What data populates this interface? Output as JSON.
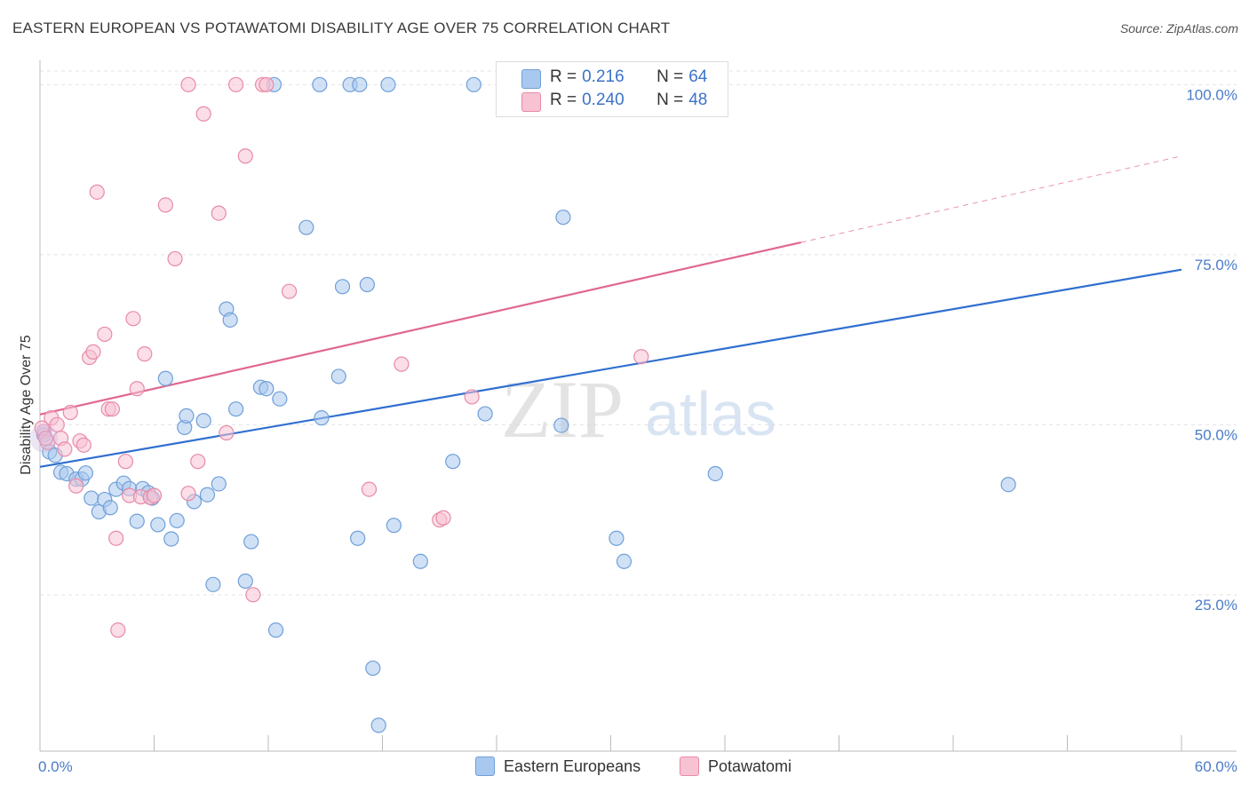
{
  "header": {
    "title": "EASTERN EUROPEAN VS POTAWATOMI DISABILITY AGE OVER 75 CORRELATION CHART",
    "source": "Source: ZipAtlas.com"
  },
  "legend_top": {
    "rows": [
      {
        "r_label": "R = ",
        "r_value": "0.216",
        "n_label": "N = ",
        "n_value": "64",
        "color": "#a9c8ef",
        "border": "#6f9fd8"
      },
      {
        "r_label": "R = ",
        "r_value": "0.240",
        "n_label": "N = ",
        "n_value": "48",
        "color": "#f7c3d3",
        "border": "#e88aa8"
      }
    ]
  },
  "legend_bottom": {
    "items": [
      {
        "label": "Eastern Europeans",
        "color": "#a9c8ef",
        "border": "#6f9fd8"
      },
      {
        "label": "Potawatomi",
        "color": "#f7c3d3",
        "border": "#e88aa8"
      }
    ]
  },
  "watermark": {
    "zip": "ZIP",
    "atlas": "atlas"
  },
  "chart_data": {
    "type": "scatter",
    "title": "EASTERN EUROPEAN VS POTAWATOMI DISABILITY AGE OVER 75 CORRELATION CHART",
    "ylabel": "Disability Age Over 75",
    "xlabel": "",
    "xlim": [
      0,
      60
    ],
    "ylim": [
      2,
      102
    ],
    "x_tick_labels": [
      "0.0%",
      "60.0%"
    ],
    "y_ticks": [
      25,
      50,
      75,
      100
    ],
    "y_tick_labels": [
      "25.0%",
      "50.0%",
      "75.0%",
      "100.0%"
    ],
    "grid": true,
    "legend_placement": "top-center",
    "series": [
      {
        "name": "Eastern Europeans",
        "color": "#6f9fd8",
        "fill": "#a9c8ef",
        "trend": {
          "x": [
            0,
            60
          ],
          "y": [
            43.8,
            72.8
          ],
          "color": "#2f6fd0"
        },
        "points": [
          [
            0.2,
            48.5
          ],
          [
            0.5,
            46
          ],
          [
            0.8,
            45.5
          ],
          [
            1.1,
            43
          ],
          [
            1.4,
            42.8
          ],
          [
            1.9,
            42
          ],
          [
            2.2,
            42
          ],
          [
            2.4,
            42.9
          ],
          [
            2.7,
            39.2
          ],
          [
            3.1,
            37.2
          ],
          [
            3.4,
            39
          ],
          [
            3.7,
            37.8
          ],
          [
            4.0,
            40.5
          ],
          [
            4.4,
            41.4
          ],
          [
            4.7,
            40.6
          ],
          [
            5.1,
            35.8
          ],
          [
            5.4,
            40.6
          ],
          [
            5.7,
            40
          ],
          [
            5.9,
            39.2
          ],
          [
            6.2,
            35.3
          ],
          [
            6.6,
            56.8
          ],
          [
            6.9,
            33.2
          ],
          [
            7.2,
            35.9
          ],
          [
            7.6,
            49.6
          ],
          [
            7.7,
            51.3
          ],
          [
            8.1,
            38.7
          ],
          [
            8.6,
            50.6
          ],
          [
            8.8,
            39.7
          ],
          [
            9.1,
            26.5
          ],
          [
            9.4,
            41.3
          ],
          [
            9.8,
            67
          ],
          [
            10.0,
            65.4
          ],
          [
            10.3,
            52.3
          ],
          [
            10.8,
            27
          ],
          [
            11.1,
            32.8
          ],
          [
            11.6,
            55.5
          ],
          [
            11.9,
            55.3
          ],
          [
            12.4,
            19.8
          ],
          [
            12.6,
            53.8
          ],
          [
            14.0,
            79
          ],
          [
            14.8,
            51
          ],
          [
            15.7,
            57.1
          ],
          [
            15.9,
            70.3
          ],
          [
            16.7,
            33.3
          ],
          [
            17.2,
            70.6
          ],
          [
            17.5,
            14.2
          ],
          [
            17.8,
            5.8
          ],
          [
            18.6,
            35.2
          ],
          [
            20.0,
            29.9
          ],
          [
            21.7,
            44.6
          ],
          [
            23.4,
            51.6
          ],
          [
            27.4,
            49.9
          ],
          [
            27.5,
            80.5
          ],
          [
            30.3,
            33.3
          ],
          [
            30.7,
            29.9
          ],
          [
            35.5,
            42.8
          ],
          [
            50.9,
            41.2
          ],
          [
            12.3,
            100
          ],
          [
            14.7,
            100
          ],
          [
            16.3,
            100
          ],
          [
            16.8,
            100
          ],
          [
            18.3,
            100
          ],
          [
            22.8,
            100
          ],
          [
            33.7,
            100
          ]
        ]
      },
      {
        "name": "Potawatomi",
        "color": "#e88aa8",
        "fill": "#f7c3d3",
        "trend": {
          "x": [
            0,
            40
          ],
          "y": [
            51.5,
            76.8
          ],
          "dashed_to": [
            60,
            89.5
          ],
          "color": "#e0678f"
        },
        "points": [
          [
            0.2,
            49
          ],
          [
            0.4,
            47.4
          ],
          [
            0.6,
            51
          ],
          [
            0.9,
            50
          ],
          [
            1.1,
            48
          ],
          [
            1.3,
            46.4
          ],
          [
            1.6,
            51.8
          ],
          [
            1.9,
            41
          ],
          [
            2.1,
            47.6
          ],
          [
            2.3,
            47
          ],
          [
            2.6,
            59.9
          ],
          [
            2.8,
            60.7
          ],
          [
            3.0,
            84.2
          ],
          [
            3.4,
            63.3
          ],
          [
            3.6,
            52.3
          ],
          [
            3.8,
            52.3
          ],
          [
            4.0,
            33.3
          ],
          [
            4.1,
            19.8
          ],
          [
            4.5,
            44.6
          ],
          [
            4.7,
            39.6
          ],
          [
            4.9,
            65.6
          ],
          [
            5.1,
            55.3
          ],
          [
            5.3,
            39.4
          ],
          [
            5.5,
            60.4
          ],
          [
            5.8,
            39.3
          ],
          [
            6.0,
            39.6
          ],
          [
            6.6,
            82.3
          ],
          [
            7.1,
            74.4
          ],
          [
            7.8,
            39.9
          ],
          [
            8.3,
            44.6
          ],
          [
            8.6,
            95.7
          ],
          [
            9.4,
            81.1
          ],
          [
            9.8,
            48.8
          ],
          [
            10.8,
            89.5
          ],
          [
            11.2,
            25
          ],
          [
            13.1,
            69.6
          ],
          [
            17.3,
            40.5
          ],
          [
            19.0,
            58.9
          ],
          [
            21.0,
            36
          ],
          [
            21.2,
            36.3
          ],
          [
            22.7,
            54.1
          ],
          [
            31.6,
            60
          ],
          [
            7.8,
            100
          ],
          [
            10.3,
            100
          ],
          [
            11.7,
            100
          ],
          [
            11.9,
            100
          ],
          [
            0.1,
            49.5
          ],
          [
            0.3,
            48
          ]
        ]
      }
    ]
  }
}
